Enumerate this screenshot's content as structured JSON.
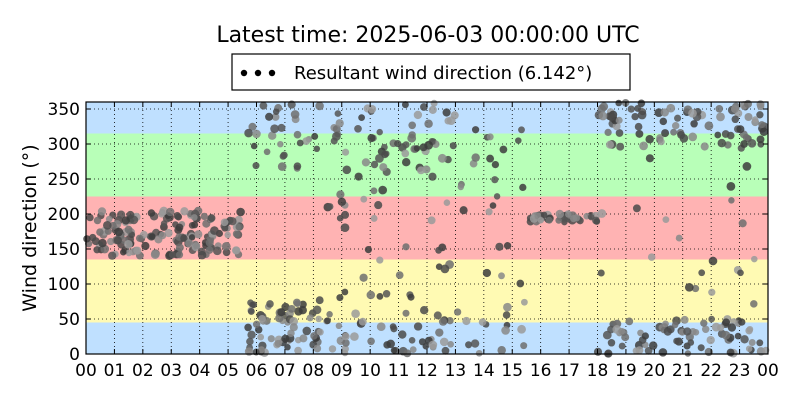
{
  "chart_data": {
    "type": "scatter",
    "title": "Latest time: 2025-06-03 00:00:00 UTC",
    "xlabel": "",
    "ylabel": "Wind direction (°)",
    "xlim": [
      0,
      24
    ],
    "ylim": [
      0,
      360
    ],
    "x_ticks": [
      "00",
      "01",
      "02",
      "03",
      "04",
      "05",
      "06",
      "07",
      "08",
      "09",
      "10",
      "11",
      "12",
      "13",
      "14",
      "15",
      "16",
      "17",
      "18",
      "19",
      "20",
      "21",
      "22",
      "23",
      "00"
    ],
    "y_ticks": [
      0,
      50,
      100,
      150,
      200,
      250,
      300,
      350
    ],
    "grid": true,
    "legend": {
      "placement": "top-center",
      "label": "Resultant wind direction (6.142°)"
    },
    "bands": [
      {
        "from": 0,
        "to": 45,
        "color": "#bfe0ff"
      },
      {
        "from": 45,
        "to": 135,
        "color": "#fffab3"
      },
      {
        "from": 135,
        "to": 225,
        "color": "#ffb3b3"
      },
      {
        "from": 225,
        "to": 315,
        "color": "#b8ffb8"
      },
      {
        "from": 315,
        "to": 360,
        "color": "#bfe0ff"
      }
    ],
    "series": [
      {
        "clusters": [
          {
            "x": [
              0.0,
              5.5
            ],
            "y": [
              140,
              205
            ],
            "n": 170
          },
          {
            "x": [
              5.7,
              8.3
            ],
            "y": [
              0,
              80
            ],
            "n": 70
          },
          {
            "x": [
              5.7,
              8.3
            ],
            "y": [
              260,
              360
            ],
            "n": 30
          },
          {
            "x": [
              8.3,
              13.0
            ],
            "y": [
              0,
              60
            ],
            "n": 45
          },
          {
            "x": [
              8.3,
              13.0
            ],
            "y": [
              260,
              360
            ],
            "n": 60
          },
          {
            "x": [
              8.3,
              13.0
            ],
            "y": [
              60,
              260
            ],
            "n": 35
          },
          {
            "x": [
              13.0,
              15.5
            ],
            "y": [
              0,
              120
            ],
            "n": 18
          },
          {
            "x": [
              13.0,
              15.5
            ],
            "y": [
              150,
              330
            ],
            "n": 20
          },
          {
            "x": [
              15.6,
              18.0
            ],
            "y": [
              188,
              200
            ],
            "n": 40
          },
          {
            "x": [
              18.0,
              24.0
            ],
            "y": [
              0,
              50
            ],
            "n": 80
          },
          {
            "x": [
              18.0,
              24.0
            ],
            "y": [
              290,
              360
            ],
            "n": 90
          },
          {
            "x": [
              18.0,
              24.0
            ],
            "y": [
              50,
              290
            ],
            "n": 20
          }
        ]
      }
    ]
  }
}
